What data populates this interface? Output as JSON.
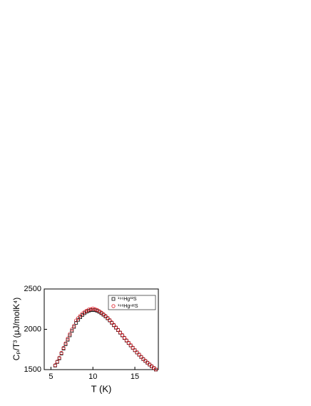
{
  "chart_data": {
    "type": "scatter",
    "xlabel": "T (K)",
    "ylabel": "Cₚ/T³ (μJ/molK⁴)",
    "xlim": [
      4.2,
      17.8
    ],
    "xticks": [
      5,
      10,
      15
    ],
    "ylim": [
      1500,
      2500
    ],
    "yticks": [
      1500,
      2000,
      2500
    ],
    "x": [
      5.5,
      5.75,
      6,
      6.25,
      6.5,
      6.75,
      7,
      7.25,
      7.5,
      7.75,
      8,
      8.25,
      8.5,
      8.75,
      9,
      9.25,
      9.5,
      9.75,
      10,
      10.25,
      10.5,
      10.75,
      11,
      11.25,
      11.5,
      11.75,
      12,
      12.25,
      12.5,
      12.75,
      13,
      13.25,
      13.5,
      13.75,
      14,
      14.25,
      14.5,
      14.75,
      15,
      15.25,
      15.5,
      15.75,
      16,
      16.25,
      16.5,
      16.75,
      17,
      17.25,
      17.5
    ],
    "series": [
      {
        "name": "¹⁹⁶Hg³²S",
        "color": "#000000",
        "marker": "square",
        "values": [
          1550,
          1595,
          1640,
          1700,
          1760,
          1815,
          1870,
          1925,
          1980,
          2030,
          2080,
          2118,
          2150,
          2178,
          2200,
          2218,
          2230,
          2237,
          2240,
          2237,
          2230,
          2217,
          2200,
          2181,
          2160,
          2136,
          2110,
          2081,
          2050,
          2020,
          1990,
          1958,
          1925,
          1892,
          1860,
          1830,
          1800,
          1770,
          1740,
          1712,
          1685,
          1657,
          1630,
          1607,
          1585,
          1562,
          1540,
          1520,
          1500
        ]
      },
      {
        "name": "¹⁹⁸HgⁿᵃᵗS",
        "color": "#e0202a",
        "marker": "circle",
        "values": [
          1555,
          1600,
          1648,
          1708,
          1770,
          1828,
          1885,
          1942,
          1998,
          2045,
          2110,
          2140,
          2170,
          2195,
          2215,
          2230,
          2245,
          2250,
          2258,
          2250,
          2240,
          2225,
          2208,
          2188,
          2166,
          2142,
          2115,
          2086,
          2055,
          2024,
          1994,
          1962,
          1929,
          1896,
          1864,
          1833,
          1803,
          1773,
          1743,
          1715,
          1688,
          1660,
          1633,
          1610,
          1588,
          1565,
          1543,
          1522,
          1502
        ]
      }
    ],
    "legend": "upper right"
  }
}
